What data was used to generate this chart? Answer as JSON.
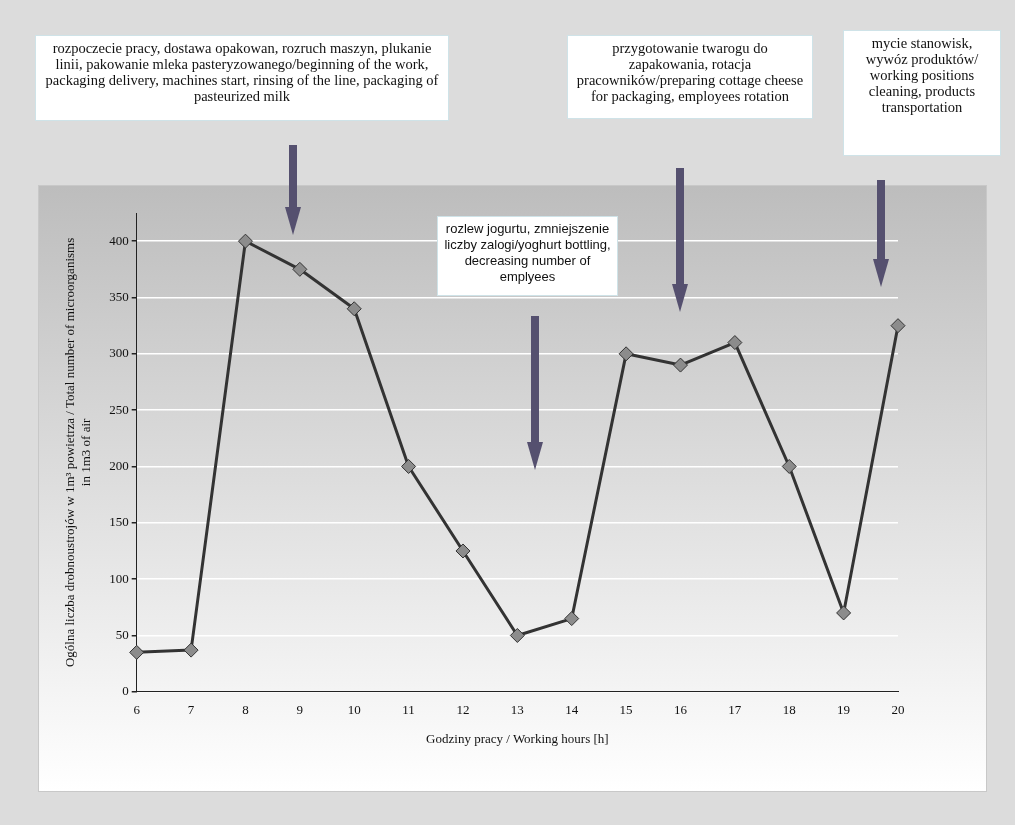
{
  "chart_data": {
    "type": "line",
    "xlabel": "Godziny pracy / Working hours [h]",
    "ylabel": "Ogólna liczba drobnoustrojów w 1m³ powietrza / Total number of microorganisms in 1m3 of air",
    "categories": [
      "6",
      "7",
      "8",
      "9",
      "10",
      "11",
      "12",
      "13",
      "14",
      "15",
      "16",
      "17",
      "18",
      "19",
      "20"
    ],
    "series": [
      {
        "color": "#333333",
        "values": [
          35,
          37,
          400,
          375,
          340,
          200,
          125,
          50,
          65,
          300,
          290,
          310,
          200,
          70,
          325
        ]
      }
    ],
    "ylim": [
      0,
      425
    ],
    "yticks": [
      0,
      50,
      100,
      150,
      200,
      250,
      300,
      350,
      400
    ],
    "grid": "y",
    "legend": false,
    "marker": "diamond",
    "line_style": "solid",
    "annotations": [
      "rozpoczecie pracy, dostawa opakowan, rozruch maszyn, plukanie linii, pakowanie mleka pasteryzowanego/beginning of the work, packaging delivery, machines start, rinsing of the line, packaging of pasteurized milk",
      "przygotowanie twarogu do zapakowania, rotacja pracowników/preparing cottage cheese for packaging, employees rotation",
      "mycie stanowisk, wywóz produktów/ working positions cleaning, products transportation",
      "rozlew jogurtu, zmniejszenie liczby zalogi/yoghurt bottling, decreasing number of emplyees"
    ]
  }
}
